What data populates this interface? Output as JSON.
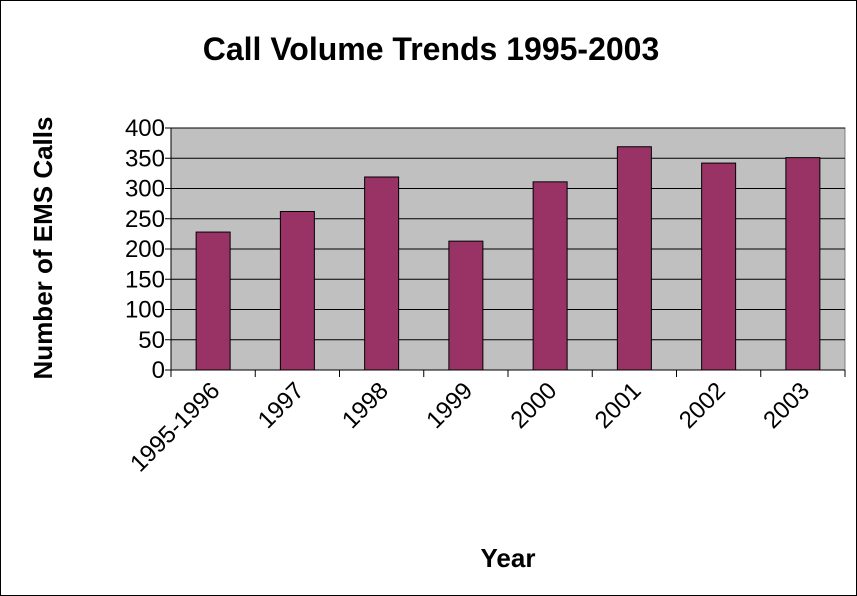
{
  "chart_data": {
    "type": "bar",
    "title": "Call Volume Trends 1995-2003",
    "xlabel": "Year",
    "ylabel": "Number of EMS Calls",
    "categories": [
      "1995-1996",
      "1997",
      "1998",
      "1999",
      "2000",
      "2001",
      "2002",
      "2003"
    ],
    "values": [
      228,
      262,
      319,
      213,
      311,
      369,
      342,
      351
    ],
    "ylim": [
      0,
      400
    ],
    "yticks": [
      0,
      50,
      100,
      150,
      200,
      250,
      300,
      350,
      400
    ],
    "grid": true,
    "legend": "none",
    "colors": {
      "bar": "#993366",
      "plot_bg": "#c0c0c0",
      "grid": "#000000"
    }
  }
}
